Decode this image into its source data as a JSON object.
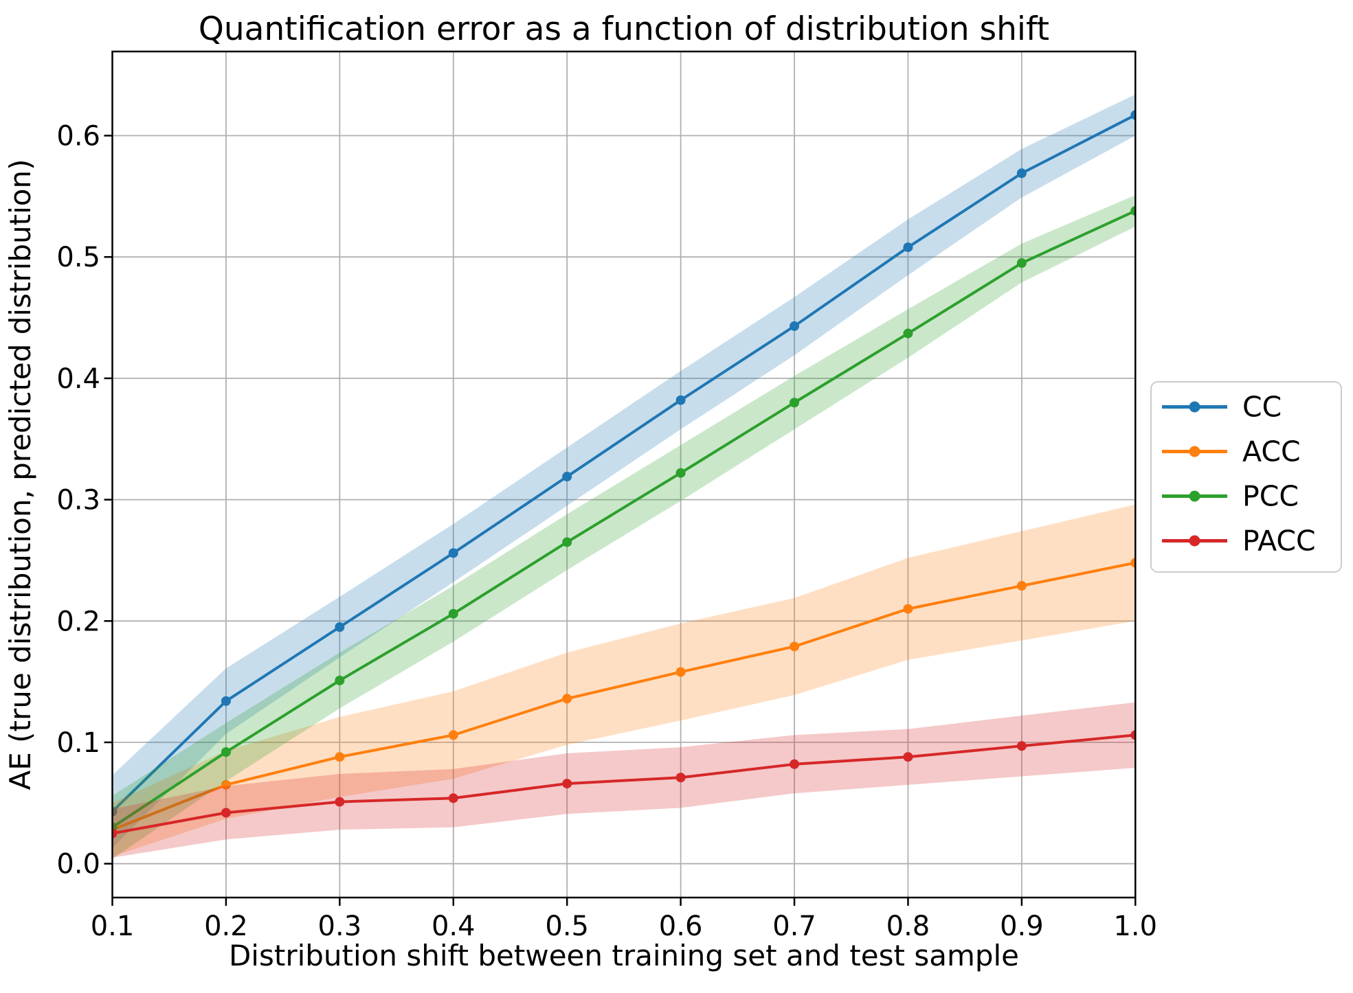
{
  "chart_data": {
    "type": "line",
    "title": "Quantification error as a function of distribution shift",
    "xlabel": "Distribution shift between training set and test sample",
    "ylabel": "AE (true distribution, predicted distribution)",
    "x": [
      0.1,
      0.2,
      0.3,
      0.4,
      0.5,
      0.6,
      0.7,
      0.8,
      0.9,
      1.0
    ],
    "x_tick_labels": [
      "0.1",
      "0.2",
      "0.3",
      "0.4",
      "0.5",
      "0.6",
      "0.7",
      "0.8",
      "0.9",
      "1.0"
    ],
    "y_ticks": [
      0.0,
      0.1,
      0.2,
      0.3,
      0.4,
      0.5,
      0.6
    ],
    "y_tick_labels": [
      "0.0",
      "0.1",
      "0.2",
      "0.3",
      "0.4",
      "0.5",
      "0.6"
    ],
    "xlim": [
      0.1,
      1.0
    ],
    "ylim": [
      -0.028,
      0.669
    ],
    "grid": true,
    "grid_color": "#b0b0b0",
    "background": "#ffffff",
    "band_alpha": 0.25,
    "legend_position": "outside-right",
    "series": [
      {
        "name": "CC",
        "color": "#1f77b4",
        "values": [
          0.043,
          0.134,
          0.195,
          0.256,
          0.319,
          0.382,
          0.443,
          0.508,
          0.569,
          0.617
        ],
        "band": [
          0.03,
          0.027,
          0.025,
          0.024,
          0.024,
          0.024,
          0.024,
          0.023,
          0.02,
          0.017
        ]
      },
      {
        "name": "ACC",
        "color": "#ff7f0e",
        "values": [
          0.028,
          0.065,
          0.088,
          0.106,
          0.136,
          0.158,
          0.179,
          0.21,
          0.229,
          0.248
        ],
        "band": [
          0.022,
          0.028,
          0.033,
          0.036,
          0.038,
          0.04,
          0.04,
          0.042,
          0.045,
          0.048
        ]
      },
      {
        "name": "PCC",
        "color": "#2ca02c",
        "values": [
          0.03,
          0.092,
          0.151,
          0.206,
          0.265,
          0.322,
          0.38,
          0.437,
          0.495,
          0.538
        ],
        "band": [
          0.026,
          0.024,
          0.023,
          0.023,
          0.023,
          0.023,
          0.022,
          0.02,
          0.016,
          0.013
        ]
      },
      {
        "name": "PACC",
        "color": "#d62728",
        "values": [
          0.025,
          0.042,
          0.051,
          0.054,
          0.066,
          0.071,
          0.082,
          0.088,
          0.097,
          0.106
        ],
        "band": [
          0.02,
          0.022,
          0.023,
          0.024,
          0.025,
          0.025,
          0.024,
          0.023,
          0.025,
          0.027
        ]
      }
    ]
  }
}
